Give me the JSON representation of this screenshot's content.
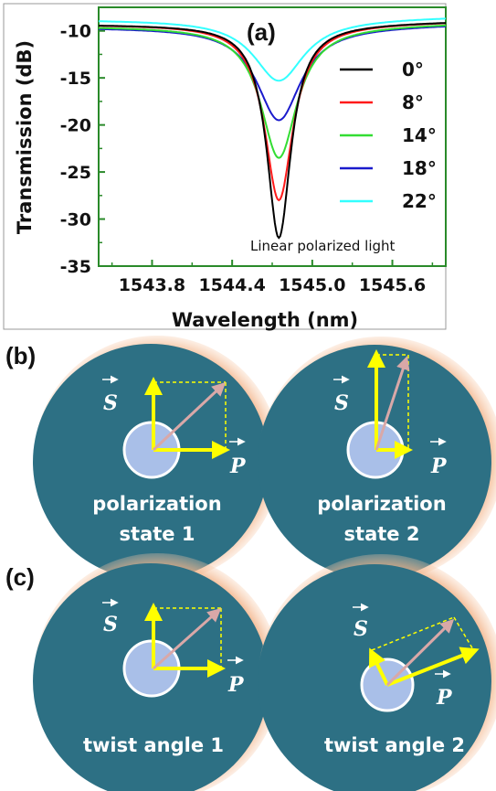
{
  "panels": {
    "a": "(a)",
    "b": "(b)",
    "c": "(c)"
  },
  "chart_data": {
    "type": "line",
    "title": "",
    "xlabel": "Wavelength (nm)",
    "ylabel": "Transmission (dB)",
    "xlim": [
      1543.4,
      1546.0
    ],
    "ylim": [
      -35,
      -7.5
    ],
    "xticks": [
      "1543.8",
      "1544.4",
      "1545.0",
      "1545.6"
    ],
    "xtick_values": [
      1543.8,
      1544.4,
      1545.0,
      1545.6
    ],
    "yticks": [
      "-10",
      "-15",
      "-20",
      "-25",
      "-30",
      "-35"
    ],
    "ytick_values": [
      -10,
      -15,
      -20,
      -25,
      -30,
      -35
    ],
    "annotation": "Linear polarized light",
    "legend_position": "right",
    "center": 1544.75,
    "series": [
      {
        "name": "0°",
        "color": "#000000",
        "min": -32.0,
        "edge": -9.3,
        "width": 0.22
      },
      {
        "name": "8°",
        "color": "#ff1a1a",
        "min": -28.0,
        "edge": -9.3,
        "width": 0.26
      },
      {
        "name": "14°",
        "color": "#33dd33",
        "min": -23.5,
        "edge": -9.5,
        "width": 0.33
      },
      {
        "name": "18°",
        "color": "#1a1acc",
        "min": -19.5,
        "edge": -9.6,
        "width": 0.4
      },
      {
        "name": "22°",
        "color": "#33ffff",
        "min": -15.3,
        "edge": -8.8,
        "width": 0.46
      }
    ]
  },
  "diagrams": {
    "b1": {
      "label_line1": "polarization",
      "label_line2": "state 1",
      "s": "S",
      "p": "P"
    },
    "b2": {
      "label_line1": "polarization",
      "label_line2": "state 2",
      "s": "S",
      "p": "P"
    },
    "c1": {
      "label_line1": "twist angle 1",
      "s": "S",
      "p": "P"
    },
    "c2": {
      "label_line1": "twist angle 2",
      "s": "S",
      "p": "P"
    }
  },
  "colors": {
    "fiber": "#2d7084",
    "cladding_glow": "#f0a878",
    "core": "#a9bfe8",
    "vector": "#ffff00",
    "resultant": "#d9a8a8"
  }
}
